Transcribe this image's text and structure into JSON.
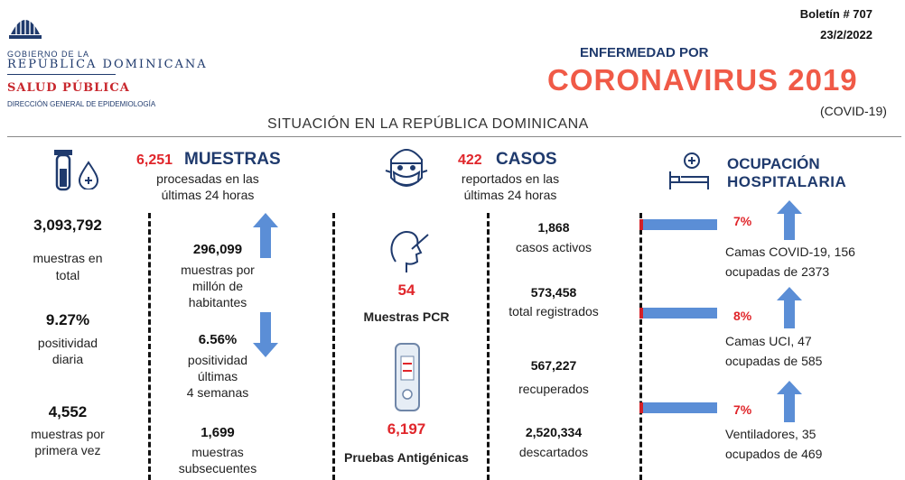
{
  "header": {
    "gov_line1": "GOBIERNO DE LA",
    "gov_line2": "REPÚBLICA DOMINICANA",
    "ministry": "SALUD PÚBLICA",
    "directorate": "DIRECCIÓN GENERAL DE EPIDEMIOLOGÍA",
    "bulletin": "Boletín # 707",
    "date": "23/2/2022",
    "title_small": "ENFERMEDAD POR",
    "title_big": "CORONAVIRUS 2019",
    "title_paren": "(COVID-19)",
    "subtitle": "SITUACIÓN EN LA REPÚBLICA DOMINICANA"
  },
  "samples": {
    "count24": "6,251",
    "heading": "MUESTRAS",
    "sub1": "procesadas en las",
    "sub2": "últimas 24 horas",
    "total_value": "3,093,792",
    "total_label1": "muestras en",
    "total_label2": "total",
    "pos_daily_value": "9.27%",
    "pos_daily_label1": "positividad",
    "pos_daily_label2": "diaria",
    "first_value": "4,552",
    "first_label1": "muestras por",
    "first_label2": "primera vez",
    "per_million_value": "296,099",
    "per_million_label1": "muestras por",
    "per_million_label2": "millón de",
    "per_million_label3": "habitantes",
    "pos4w_value": "6.56%",
    "pos4w_label1": "positividad",
    "pos4w_label2": "últimas",
    "pos4w_label3": "4 semanas",
    "subsequent_value": "1,699",
    "subsequent_label1": "muestras",
    "subsequent_label2": "subsecuentes"
  },
  "cases": {
    "count24": "422",
    "heading": "CASOS",
    "sub1": "reportados en las",
    "sub2": "últimas 24 horas",
    "pcr_value": "54",
    "pcr_label": "Muestras PCR",
    "antigen_value": "6,197",
    "antigen_label": "Pruebas Antigénicas",
    "active_value": "1,868",
    "active_label": "casos activos",
    "total_value": "573,458",
    "total_label": "total registrados",
    "recovered_value": "567,227",
    "recovered_label": "recuperados",
    "discarded_value": "2,520,334",
    "discarded_label": "descartados"
  },
  "hospital": {
    "heading1": "OCUPACIÓN",
    "heading2": "HOSPITALARIA",
    "covid_beds_pct": "7%",
    "covid_beds_label1": "Camas COVID-19, 156",
    "covid_beds_label2": "ocupadas de 2373",
    "icu_pct": "8%",
    "icu_label1": "Camas UCI, 47",
    "icu_label2": "ocupadas de 585",
    "vent_pct": "7%",
    "vent_label1": "Ventiladores, 35",
    "vent_label2": "ocupados de 469",
    "colors": {
      "bar": "#5b8ed6",
      "accent_red": "#d32027"
    },
    "occupancy": {
      "covid_beds": 0.07,
      "icu": 0.08,
      "ventilators": 0.07
    }
  },
  "icons": [
    "government-seal-icon",
    "test-tube-icon",
    "blood-drop-icon",
    "masked-face-icon",
    "pcr-swab-icon",
    "antigen-test-icon",
    "hospital-bed-icon",
    "arrow-up-icon",
    "arrow-down-icon"
  ]
}
